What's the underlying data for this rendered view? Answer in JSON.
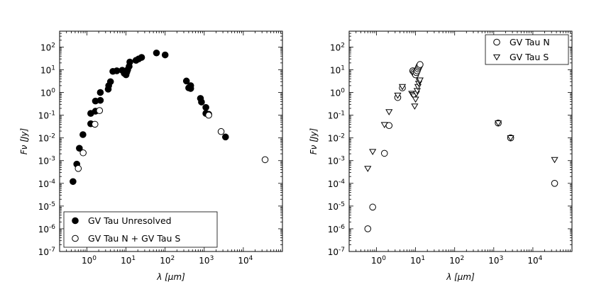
{
  "chart_data": [
    {
      "type": "scatter",
      "title": "",
      "xlabel": "λ [μm]",
      "ylabel": "Fν [Jy]",
      "xscale": "log",
      "yscale": "log",
      "xlim": [
        0.2,
        100000
      ],
      "ylim": [
        1e-07,
        500
      ],
      "x_ticks": [
        "10^0",
        "10^1",
        "10^2",
        "10^3",
        "10^4"
      ],
      "y_ticks": [
        "10^2",
        "10^1",
        "10^0",
        "10^-1",
        "10^-2",
        "10^-3",
        "10^-4",
        "10^-5",
        "10^-6",
        "10^-7"
      ],
      "legend_position": "lower-left",
      "series": [
        {
          "name": "GV Tau Unresolved",
          "marker": "filled-circle",
          "points": [
            [
              0.44,
              0.00012
            ],
            [
              0.55,
              0.0007
            ],
            [
              0.64,
              0.0035
            ],
            [
              0.79,
              0.014
            ],
            [
              1.25,
              0.042
            ],
            [
              1.25,
              0.12
            ],
            [
              1.65,
              0.15
            ],
            [
              1.65,
              0.42
            ],
            [
              2.2,
              0.45
            ],
            [
              2.2,
              1.0
            ],
            [
              3.5,
              1.4
            ],
            [
              3.6,
              2.0
            ],
            [
              4.0,
              3.0
            ],
            [
              4.6,
              8.5
            ],
            [
              5.8,
              9.0
            ],
            [
              8.0,
              9.5
            ],
            [
              9.0,
              7.0
            ],
            [
              10.0,
              6.0
            ],
            [
              10.5,
              8.0
            ],
            [
              11.0,
              10.0
            ],
            [
              12.0,
              14.0
            ],
            [
              12.5,
              22.0
            ],
            [
              18.0,
              26.0
            ],
            [
              21.0,
              30.0
            ],
            [
              25.0,
              35.0
            ],
            [
              60.0,
              55.0
            ],
            [
              100.0,
              45.0
            ],
            [
              350.0,
              3.2
            ],
            [
              400.0,
              1.6
            ],
            [
              450.0,
              2.0
            ],
            [
              450.0,
              1.5
            ],
            [
              800.0,
              0.55
            ],
            [
              850.0,
              0.38
            ],
            [
              1100.0,
              0.22
            ],
            [
              1100.0,
              0.12
            ],
            [
              1300.0,
              0.11
            ],
            [
              3500.0,
              0.011
            ]
          ]
        },
        {
          "name": "GV Tau N + GV Tau S",
          "marker": "open-circle",
          "points": [
            [
              0.6,
              0.00045
            ],
            [
              0.8,
              0.0022
            ],
            [
              1.6,
              0.04
            ],
            [
              2.1,
              0.16
            ],
            [
              1300.0,
              0.1
            ],
            [
              2700.0,
              0.019
            ],
            [
              36000.0,
              0.0011
            ]
          ]
        }
      ]
    },
    {
      "type": "scatter",
      "title": "",
      "xlabel": "λ [μm]",
      "ylabel": "Fν [Jy]",
      "xscale": "log",
      "yscale": "log",
      "xlim": [
        0.2,
        100000
      ],
      "ylim": [
        1e-07,
        500
      ],
      "x_ticks": [
        "10^0",
        "10^1",
        "10^2",
        "10^3",
        "10^4"
      ],
      "y_ticks": [
        "10^2",
        "10^1",
        "10^0",
        "10^-1",
        "10^-2",
        "10^-3",
        "10^-4",
        "10^-5",
        "10^-6",
        "10^-7"
      ],
      "legend_position": "top-right",
      "series": [
        {
          "name": "GV Tau N",
          "marker": "open-circle",
          "points": [
            [
              0.6,
              1e-06
            ],
            [
              0.8,
              9e-06
            ],
            [
              1.6,
              0.0021
            ],
            [
              2.1,
              0.035
            ],
            [
              3.5,
              0.6
            ],
            [
              4.6,
              1.6
            ],
            [
              8.5,
              9.0
            ],
            [
              9.0,
              8.0
            ],
            [
              9.5,
              7.0
            ],
            [
              10.0,
              6.0
            ],
            [
              10.5,
              7.5
            ],
            [
              11.0,
              9.0
            ],
            [
              11.5,
              11.0
            ],
            [
              12.0,
              13.0
            ],
            [
              12.5,
              15.0
            ],
            [
              13.0,
              17.0
            ],
            [
              1300.0,
              0.045
            ],
            [
              2700.0,
              0.01
            ],
            [
              36000.0,
              0.0001
            ]
          ]
        },
        {
          "name": "GV Tau S",
          "marker": "open-triangle-down",
          "points": [
            [
              0.6,
              0.00045
            ],
            [
              0.8,
              0.0025
            ],
            [
              1.6,
              0.038
            ],
            [
              2.1,
              0.14
            ],
            [
              3.5,
              0.75
            ],
            [
              4.6,
              1.8
            ],
            [
              8.0,
              0.9
            ],
            [
              8.5,
              0.8
            ],
            [
              9.0,
              0.7
            ],
            [
              9.5,
              0.25
            ],
            [
              10.0,
              0.5
            ],
            [
              10.5,
              0.9
            ],
            [
              11.0,
              1.2
            ],
            [
              11.5,
              1.8
            ],
            [
              12.0,
              2.5
            ],
            [
              12.5,
              3.2
            ],
            [
              13.0,
              3.5
            ],
            [
              1300.0,
              0.045
            ],
            [
              2700.0,
              0.01
            ],
            [
              36000.0,
              0.0011
            ]
          ]
        }
      ]
    }
  ]
}
